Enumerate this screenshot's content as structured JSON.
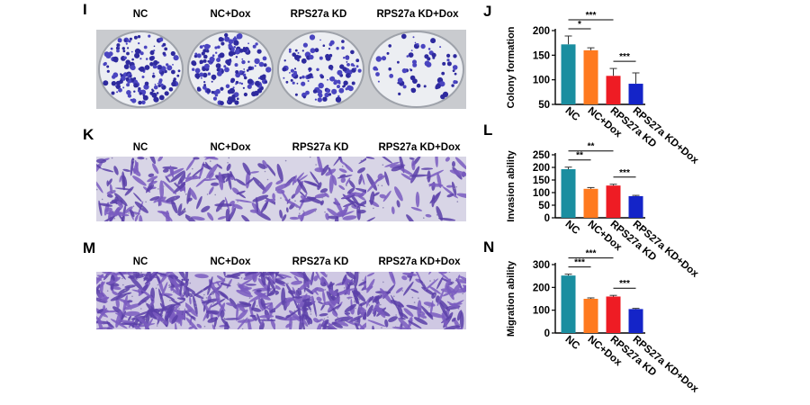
{
  "figure": {
    "panels": [
      {
        "letter": "I",
        "labels": [
          "NC",
          "NC+Dox",
          "RPS27a KD",
          "RPS27a KD+Dox"
        ],
        "kind": "colony"
      },
      {
        "letter": "K",
        "labels": [
          "NC",
          "NC+Dox",
          "RPS27a KD",
          "RPS27a KD+Dox"
        ],
        "kind": "invasion"
      },
      {
        "letter": "M",
        "labels": [
          "NC",
          "NC+Dox",
          "RPS27a KD",
          "RPS27a KD+Dox"
        ],
        "kind": "migration"
      }
    ]
  },
  "chart_data": [
    {
      "panel_letter": "J",
      "type": "bar",
      "categories": [
        "NC",
        "NC+Dox",
        "RPS27a KD",
        "RPS27a KD+Dox"
      ],
      "values": [
        172,
        160,
        108,
        92
      ],
      "errors": [
        17,
        5,
        15,
        22
      ],
      "ylabel": "Colony formation",
      "ylim": [
        50,
        200
      ],
      "yticks": [
        50,
        100,
        150,
        200
      ],
      "bar_colors": [
        "#1a8ea0",
        "#ff7a1f",
        "#ee1c24",
        "#1424c8"
      ],
      "significance": [
        {
          "from": 0,
          "to": 1,
          "label": "*"
        },
        {
          "from": 0,
          "to": 2,
          "label": "***"
        },
        {
          "from": 2,
          "to": 3,
          "label": "***"
        }
      ]
    },
    {
      "panel_letter": "L",
      "type": "bar",
      "categories": [
        "NC",
        "NC+Dox",
        "RPS27a KD",
        "RPS27a KD+Dox"
      ],
      "values": [
        193,
        115,
        128,
        86
      ],
      "errors": [
        8,
        5,
        5,
        3
      ],
      "ylabel": "Invasion ability",
      "ylim": [
        0,
        250
      ],
      "yticks": [
        0,
        50,
        100,
        150,
        200,
        250
      ],
      "bar_colors": [
        "#1a8ea0",
        "#ff7a1f",
        "#ee1c24",
        "#1424c8"
      ],
      "significance": [
        {
          "from": 0,
          "to": 1,
          "label": "**"
        },
        {
          "from": 0,
          "to": 2,
          "label": "**"
        },
        {
          "from": 2,
          "to": 3,
          "label": "***"
        }
      ]
    },
    {
      "panel_letter": "N",
      "type": "bar",
      "categories": [
        "NC",
        "NC+Dox",
        "RPS27a KD",
        "RPS27a KD+Dox"
      ],
      "values": [
        252,
        150,
        160,
        105
      ],
      "errors": [
        6,
        4,
        5,
        3
      ],
      "ylabel": "Migration ability",
      "ylim": [
        0,
        300
      ],
      "yticks": [
        0,
        100,
        200,
        300
      ],
      "bar_colors": [
        "#1a8ea0",
        "#ff7a1f",
        "#ee1c24",
        "#1424c8"
      ],
      "significance": [
        {
          "from": 0,
          "to": 1,
          "label": "***"
        },
        {
          "from": 0,
          "to": 2,
          "label": "***"
        },
        {
          "from": 2,
          "to": 3,
          "label": "***"
        }
      ]
    }
  ]
}
